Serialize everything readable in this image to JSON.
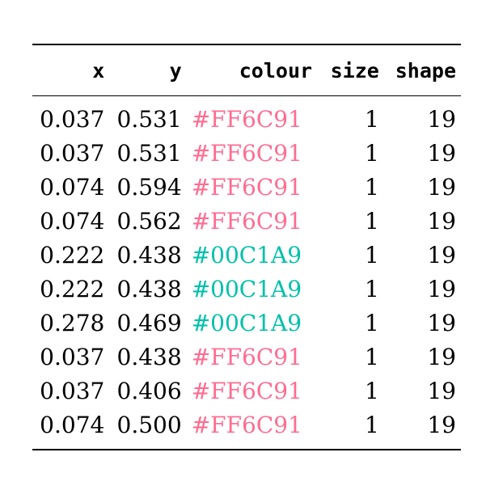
{
  "table": {
    "headers": [
      "x",
      "y",
      "colour",
      "size",
      "shape"
    ],
    "rows": [
      {
        "x": "0.037",
        "y": "0.531",
        "colour": "#FF6C91",
        "size": "1",
        "shape": "19"
      },
      {
        "x": "0.037",
        "y": "0.531",
        "colour": "#FF6C91",
        "size": "1",
        "shape": "19"
      },
      {
        "x": "0.074",
        "y": "0.594",
        "colour": "#FF6C91",
        "size": "1",
        "shape": "19"
      },
      {
        "x": "0.074",
        "y": "0.562",
        "colour": "#FF6C91",
        "size": "1",
        "shape": "19"
      },
      {
        "x": "0.222",
        "y": "0.438",
        "colour": "#00C1A9",
        "size": "1",
        "shape": "19"
      },
      {
        "x": "0.222",
        "y": "0.438",
        "colour": "#00C1A9",
        "size": "1",
        "shape": "19"
      },
      {
        "x": "0.278",
        "y": "0.469",
        "colour": "#00C1A9",
        "size": "1",
        "shape": "19"
      },
      {
        "x": "0.037",
        "y": "0.438",
        "colour": "#FF6C91",
        "size": "1",
        "shape": "19"
      },
      {
        "x": "0.037",
        "y": "0.406",
        "colour": "#FF6C91",
        "size": "1",
        "shape": "19"
      },
      {
        "x": "0.074",
        "y": "0.500",
        "colour": "#FF6C91",
        "size": "1",
        "shape": "19"
      }
    ]
  }
}
